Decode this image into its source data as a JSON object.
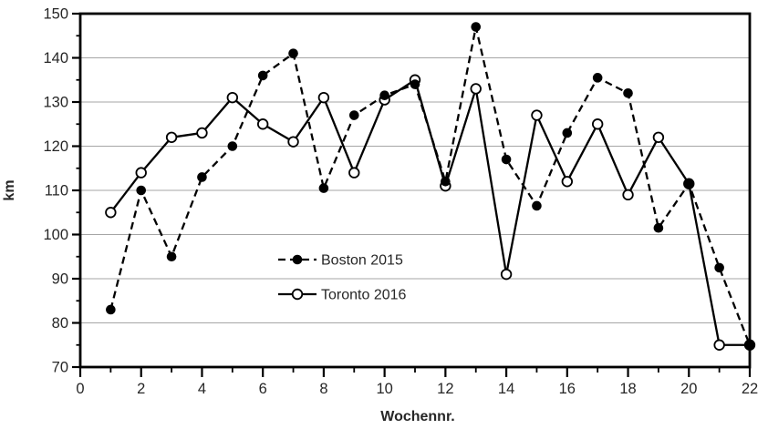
{
  "figure": {
    "background": "#ffffff",
    "axis_color": "#000000",
    "grid_color": "#a6a6a6",
    "text_color": "#262626",
    "series_color": "#000000"
  },
  "chart_data": {
    "type": "line",
    "title": "",
    "xlabel": "Wochennr.",
    "ylabel": "km",
    "xlim": [
      0,
      22
    ],
    "ylim": [
      70,
      150
    ],
    "x_major_step": 2,
    "x_minor_step": 1,
    "y_major_step": 10,
    "y_minor_step": 5,
    "grid": "horizontal-major-only",
    "legend_position": "inside-plot-center-left",
    "x": [
      1,
      2,
      3,
      4,
      5,
      6,
      7,
      8,
      9,
      10,
      11,
      12,
      13,
      14,
      15,
      16,
      17,
      18,
      19,
      20,
      21,
      22
    ],
    "series": [
      {
        "name": "Boston 2015",
        "line_style": "dashed",
        "marker": "filled-circle",
        "color": "#000000",
        "values": [
          83,
          110,
          95,
          113,
          120,
          136,
          141,
          110.5,
          127,
          131.5,
          134,
          112,
          147,
          117,
          106.5,
          123,
          135.5,
          132,
          101.5,
          111.5,
          92.5,
          75
        ]
      },
      {
        "name": "Toronto 2016",
        "line_style": "solid",
        "marker": "open-circle",
        "color": "#000000",
        "values": [
          105,
          114,
          122,
          123,
          131,
          125,
          121,
          131,
          114,
          130.5,
          135,
          111,
          133,
          91,
          127,
          112,
          125,
          109,
          122,
          111.5,
          75,
          75
        ]
      }
    ],
    "y_tick_labels": [
      "70",
      "80",
      "90",
      "100",
      "110",
      "120",
      "130",
      "140",
      "150"
    ],
    "x_tick_labels": [
      "0",
      "2",
      "4",
      "6",
      "8",
      "10",
      "12",
      "14",
      "16",
      "18",
      "20",
      "22"
    ]
  }
}
